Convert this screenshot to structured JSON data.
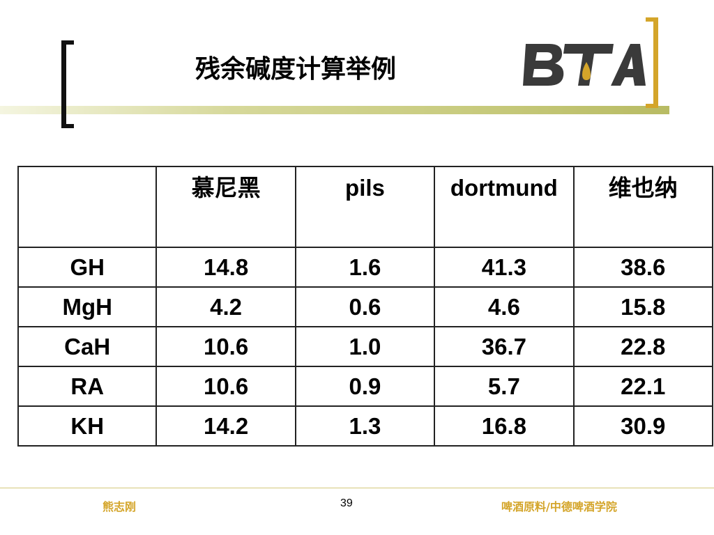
{
  "slide": {
    "title": "残余碱度计算举例",
    "logo_text": "BTA",
    "accent_color": "#d4a52a"
  },
  "table": {
    "headers": [
      "",
      "慕尼黑",
      "pils",
      "dortmund",
      "维也纳"
    ],
    "rows": [
      {
        "label": "GH",
        "values": [
          "14.8",
          "1.6",
          "41.3",
          "38.6"
        ]
      },
      {
        "label": "MgH",
        "values": [
          "4.2",
          "0.6",
          "4.6",
          "15.8"
        ]
      },
      {
        "label": "CaH",
        "values": [
          "10.6",
          "1.0",
          "36.7",
          "22.8"
        ]
      },
      {
        "label": "RA",
        "values": [
          "10.6",
          "0.9",
          "5.7",
          "22.1"
        ]
      },
      {
        "label": "KH",
        "values": [
          "14.2",
          "1.3",
          "16.8",
          "30.9"
        ]
      }
    ]
  },
  "footer": {
    "author": "熊志刚",
    "page_number": "39",
    "organization": "啤酒原料/中德啤酒学院"
  }
}
